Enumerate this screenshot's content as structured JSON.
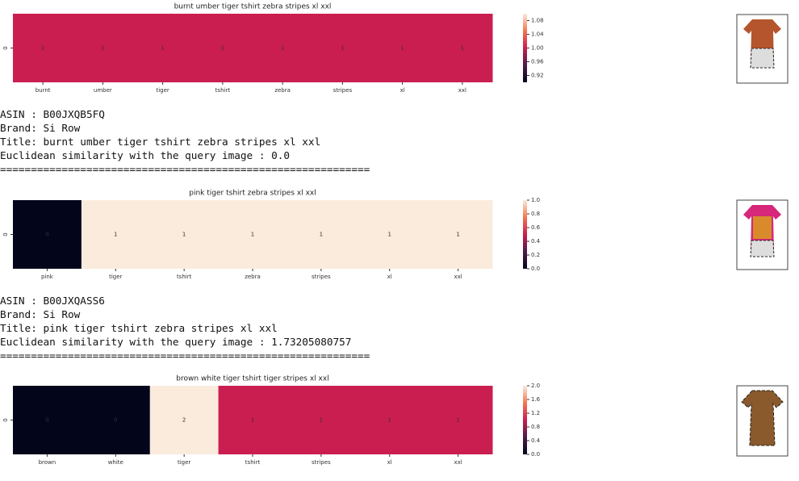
{
  "results": [
    {
      "chart_data": {
        "type": "heatmap",
        "title": "burnt umber tiger tshirt zebra stripes xl  xxl",
        "row_label": "0",
        "categories": [
          "burnt",
          "umber",
          "tiger",
          "tshirt",
          "zebra",
          "stripes",
          "xl",
          "xxl"
        ],
        "values": [
          1,
          1,
          1,
          1,
          1,
          1,
          1,
          1
        ],
        "clim": [
          0.9,
          1.1
        ],
        "cticks": [
          0.92,
          0.96,
          {
            "value": 1,
            "label": "1.00"
          },
          1.04,
          1.08
        ]
      },
      "info": [
        "ASIN : B00JXQB5FQ",
        "Brand: Si Row",
        "Title: burnt umber tiger tshirt zebra stripes xl  xxl",
        "Euclidean similarity with the query image : 0.0",
        "============================================================"
      ]
    },
    {
      "chart_data": {
        "type": "heatmap",
        "title": "pink tiger tshirt zebra stripes xl  xxl",
        "row_label": "0",
        "categories": [
          "pink",
          "tiger",
          "tshirt",
          "zebra",
          "stripes",
          "xl",
          "xxl"
        ],
        "values": [
          0,
          1,
          1,
          1,
          1,
          1,
          1
        ],
        "clim": [
          0,
          1
        ],
        "cticks": [
          {
            "value": 0,
            "label": "0.0"
          },
          0.2,
          0.4,
          0.6,
          0.8,
          {
            "value": 1,
            "label": "1.0"
          }
        ]
      },
      "info": [
        "ASIN : B00JXQASS6",
        "Brand: Si Row",
        "Title: pink tiger tshirt zebra stripes xl  xxl",
        "Euclidean similarity with the query image : 1.73205080757",
        "============================================================"
      ]
    },
    {
      "chart_data": {
        "type": "heatmap",
        "title": "brown  white tiger tshirt tiger stripes xl  xxl",
        "row_label": "0",
        "categories": [
          "brown",
          "white",
          "tiger",
          "tshirt",
          "stripes",
          "xl",
          "xxl"
        ],
        "values": [
          0,
          0,
          2,
          1,
          1,
          1,
          1
        ],
        "clim": [
          0,
          2
        ],
        "cticks": [
          {
            "value": 0,
            "label": "0.0"
          },
          0.4,
          0.8,
          1.2,
          1.6,
          {
            "value": 2,
            "label": "2.0"
          }
        ]
      }
    }
  ]
}
